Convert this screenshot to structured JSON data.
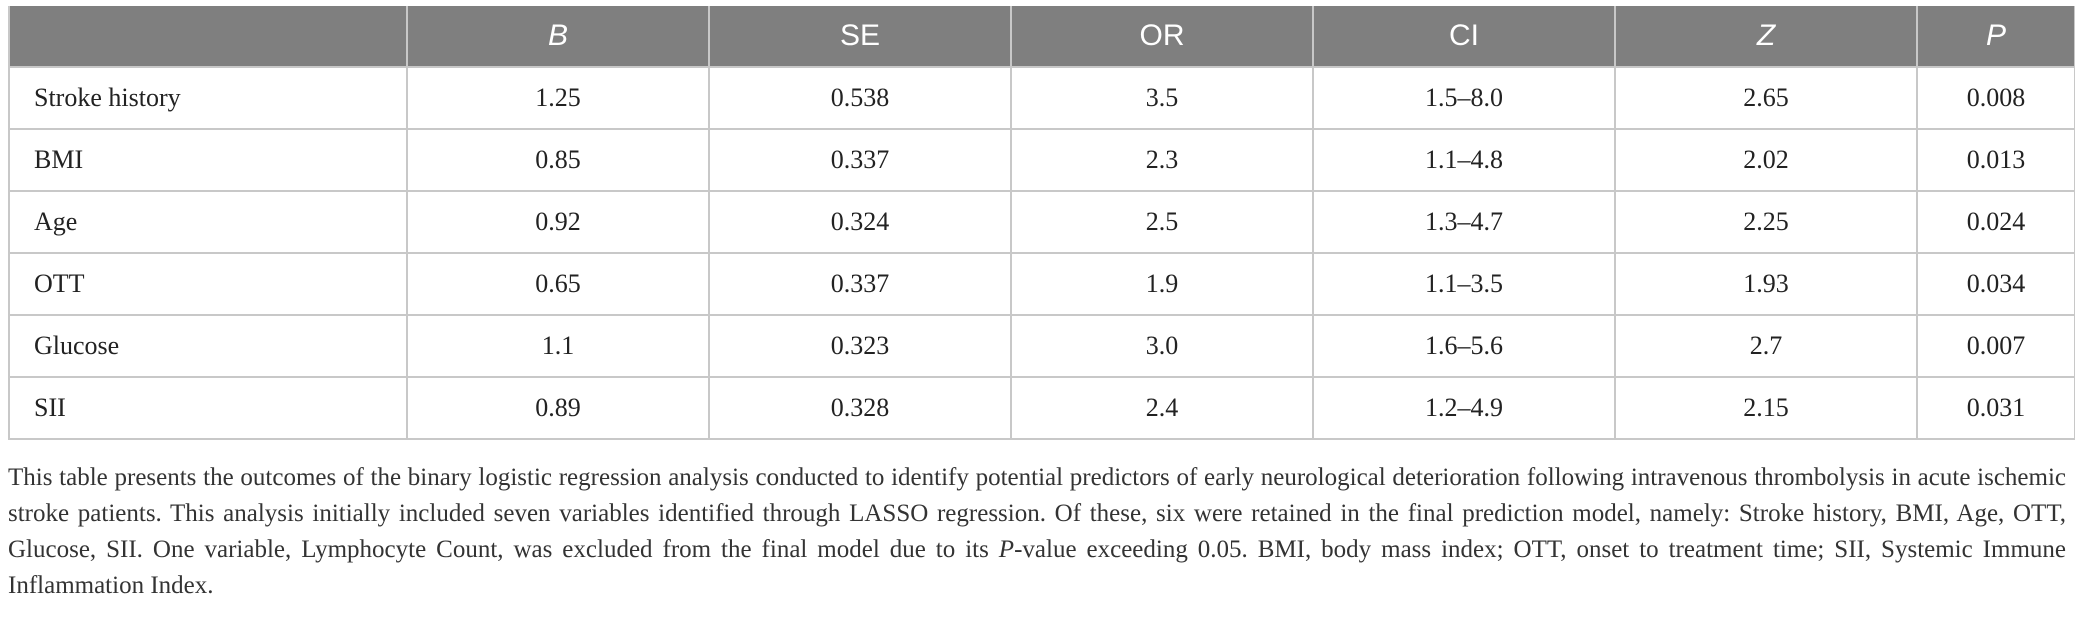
{
  "table": {
    "headers": [
      "",
      "B",
      "SE",
      "OR",
      "CI",
      "Z",
      "P"
    ],
    "rows": [
      [
        "Stroke history",
        "1.25",
        "0.538",
        "3.5",
        "1.5–8.0",
        "2.65",
        "0.008"
      ],
      [
        "BMI",
        "0.85",
        "0.337",
        "2.3",
        "1.1–4.8",
        "2.02",
        "0.013"
      ],
      [
        "Age",
        "0.92",
        "0.324",
        "2.5",
        "1.3–4.7",
        "2.25",
        "0.024"
      ],
      [
        "OTT",
        "0.65",
        "0.337",
        "1.9",
        "1.1–3.5",
        "1.93",
        "0.034"
      ],
      [
        "Glucose",
        "1.1",
        "0.323",
        "3.0",
        "1.6–5.6",
        "2.7",
        "0.007"
      ],
      [
        "SII",
        "0.89",
        "0.328",
        "2.4",
        "1.2–4.9",
        "2.15",
        "0.031"
      ]
    ]
  },
  "caption": {
    "part1": "This table presents the outcomes of the binary logistic regression analysis conducted to identify potential predictors of early neurological deterioration following intravenous thrombolysis in acute ischemic stroke patients. This analysis initially included seven variables identified through LASSO regression. Of these, six were retained in the final prediction model, namely: Stroke history, BMI, Age, OTT, Glucose, SII. One variable, Lymphocyte Count, was excluded from the final model due to its ",
    "italic": "P",
    "part2": "-value exceeding 0.05. BMI, body mass index; OTT, onset to treatment time; SII, Systemic Immune Inflammation Index."
  },
  "colors": {
    "header_bg": "#7f7f7f",
    "header_text": "#ffffff",
    "grid": "#c8c8c8",
    "body_text": "#222222"
  }
}
